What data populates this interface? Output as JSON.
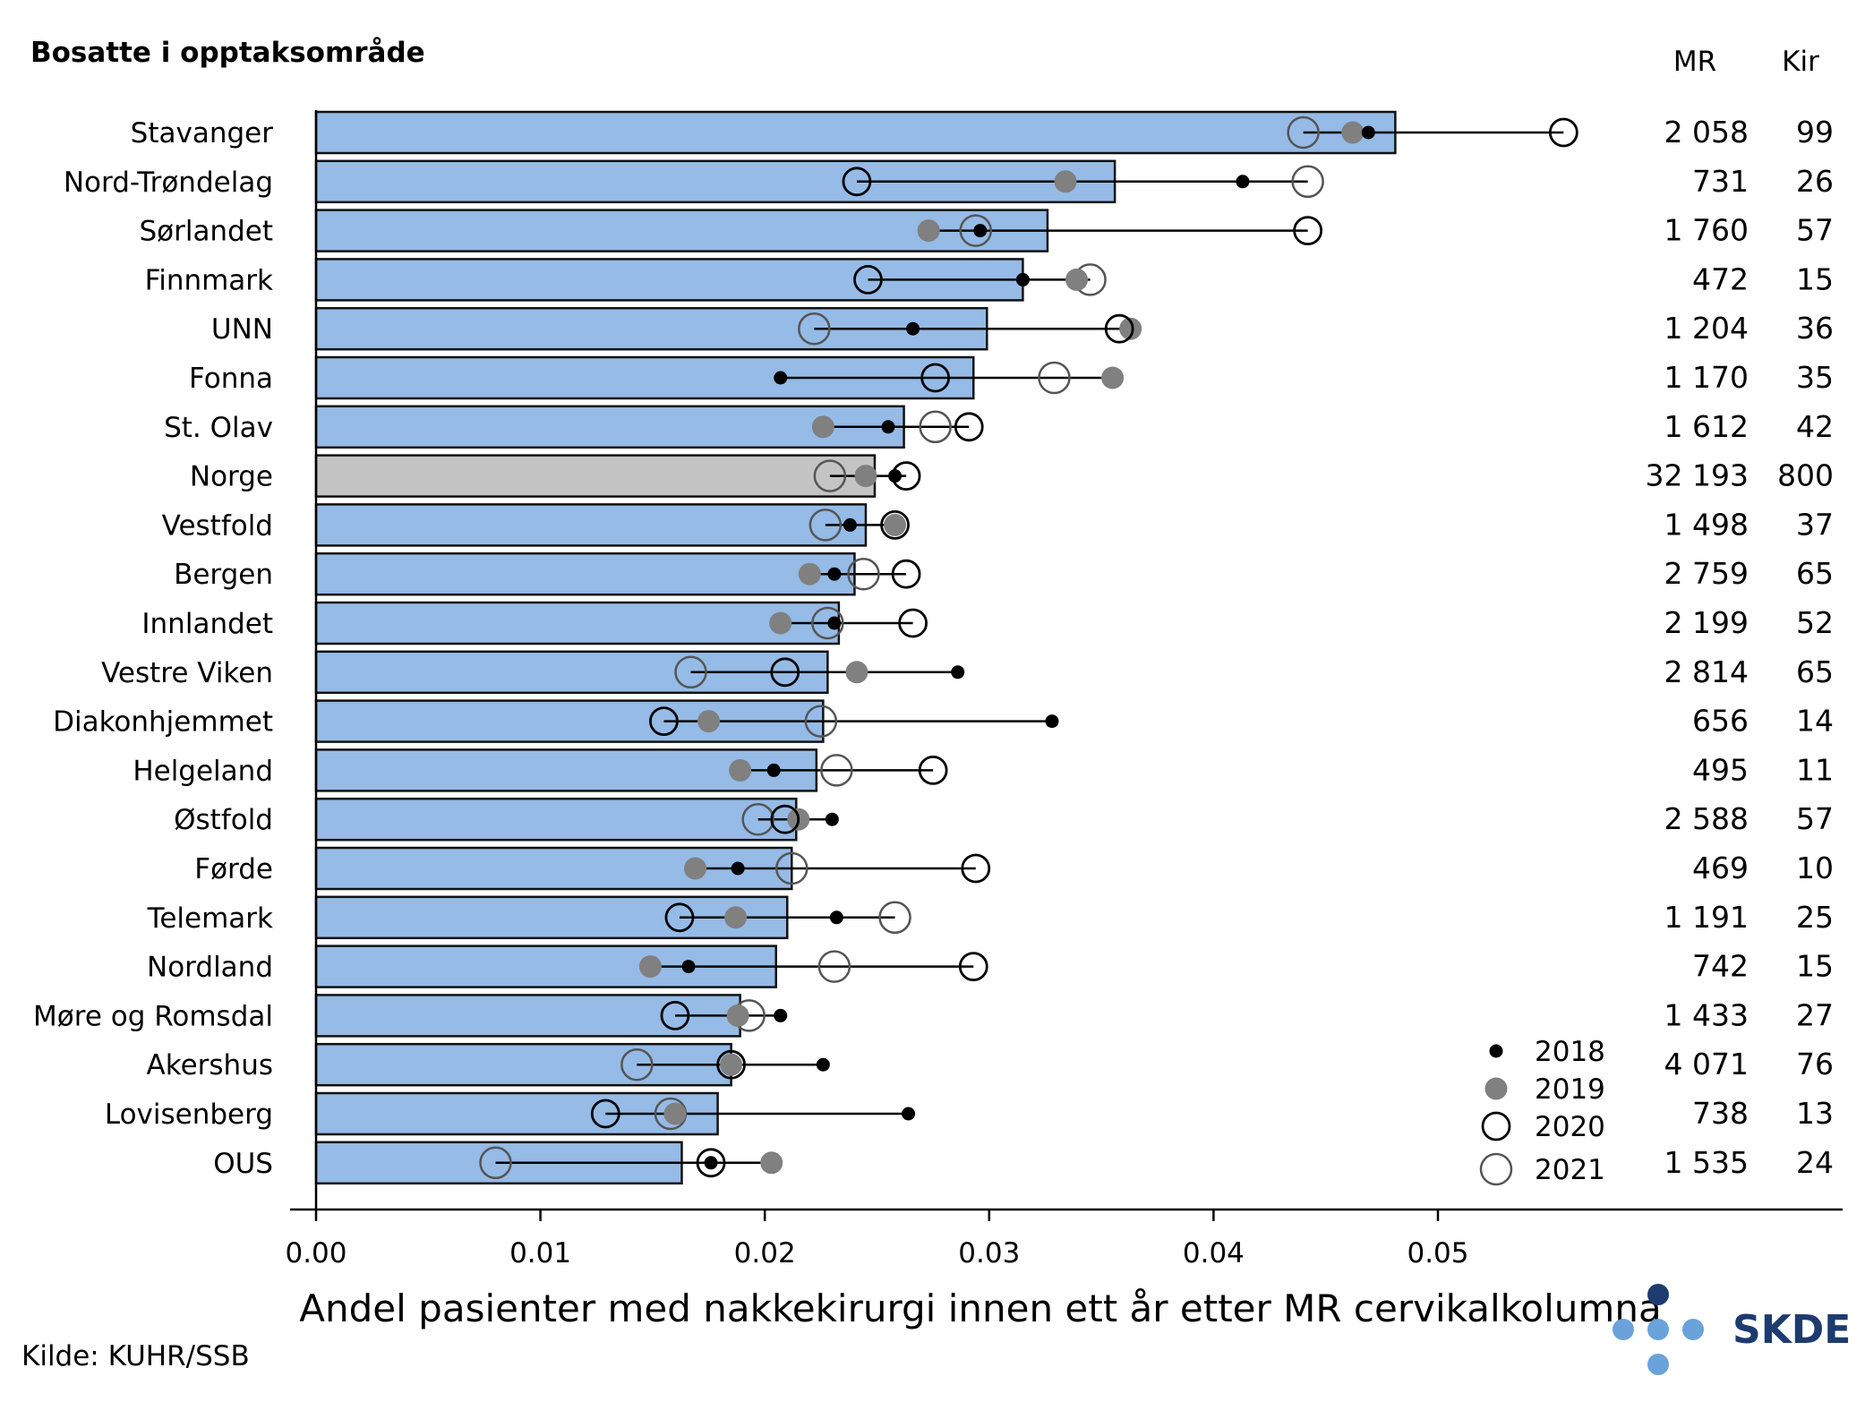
{
  "chart_data": {
    "type": "bar",
    "title": "Bosatte i opptaksområde",
    "xlabel": "Andel pasienter med nakkekirurgi innen ett år etter MR cervikalkolumna",
    "xlim": [
      0,
      0.059
    ],
    "xticks": [
      "0.00",
      "0.01",
      "0.02",
      "0.03",
      "0.04",
      "0.05"
    ],
    "source": "Kilde: KUHR/SSB",
    "logo_text": "SKDE",
    "columns": {
      "mr": "MR",
      "kir": "Kir"
    },
    "highlight_category": "Norge",
    "colors": {
      "bar": "#95bbe6",
      "bar_highlight": "#c4c4c4",
      "bar_edge": "#111111",
      "y2018": "#000000",
      "y2019": "#808080",
      "y2020": "#000000",
      "y2021": "#555555",
      "logo_dark": "#1d3b6f",
      "logo_light": "#6aa2dc"
    },
    "legend": {
      "placement": "lower-right",
      "entries": [
        "2018",
        "2019",
        "2020",
        "2021"
      ]
    },
    "rows": [
      {
        "category": "Stavanger",
        "value": 0.0481,
        "y2018": 0.0469,
        "y2019": 0.0462,
        "y2020": 0.0556,
        "y2021": 0.044,
        "mr": "2 058",
        "kir": "99"
      },
      {
        "category": "Nord-Trøndelag",
        "value": 0.0356,
        "y2018": 0.0413,
        "y2019": 0.0334,
        "y2020": 0.0241,
        "y2021": 0.0442,
        "mr": "731",
        "kir": "26"
      },
      {
        "category": "Sørlandet",
        "value": 0.0326,
        "y2018": 0.0296,
        "y2019": 0.0273,
        "y2020": 0.0442,
        "y2021": 0.0294,
        "mr": "1 760",
        "kir": "57"
      },
      {
        "category": "Finnmark",
        "value": 0.0315,
        "y2018": 0.0315,
        "y2019": 0.0339,
        "y2020": 0.0246,
        "y2021": 0.0345,
        "mr": "472",
        "kir": "15"
      },
      {
        "category": "UNN",
        "value": 0.0299,
        "y2018": 0.0266,
        "y2019": 0.0363,
        "y2020": 0.0358,
        "y2021": 0.0222,
        "mr": "1 204",
        "kir": "36"
      },
      {
        "category": "Fonna",
        "value": 0.0293,
        "y2018": 0.0207,
        "y2019": 0.0355,
        "y2020": 0.0276,
        "y2021": 0.0329,
        "mr": "1 170",
        "kir": "35"
      },
      {
        "category": "St. Olav",
        "value": 0.0262,
        "y2018": 0.0255,
        "y2019": 0.0226,
        "y2020": 0.0291,
        "y2021": 0.0276,
        "mr": "1 612",
        "kir": "42"
      },
      {
        "category": "Norge",
        "value": 0.0249,
        "y2018": 0.0258,
        "y2019": 0.0245,
        "y2020": 0.0263,
        "y2021": 0.0229,
        "mr": "32 193",
        "kir": "800"
      },
      {
        "category": "Vestfold",
        "value": 0.0245,
        "y2018": 0.0238,
        "y2019": 0.0258,
        "y2020": 0.0258,
        "y2021": 0.0227,
        "mr": "1 498",
        "kir": "37"
      },
      {
        "category": "Bergen",
        "value": 0.024,
        "y2018": 0.0231,
        "y2019": 0.022,
        "y2020": 0.0263,
        "y2021": 0.0244,
        "mr": "2 759",
        "kir": "65"
      },
      {
        "category": "Innlandet",
        "value": 0.0233,
        "y2018": 0.0231,
        "y2019": 0.0207,
        "y2020": 0.0266,
        "y2021": 0.0228,
        "mr": "2 199",
        "kir": "52"
      },
      {
        "category": "Vestre Viken",
        "value": 0.0228,
        "y2018": 0.0286,
        "y2019": 0.0241,
        "y2020": 0.0209,
        "y2021": 0.0167,
        "mr": "2 814",
        "kir": "65"
      },
      {
        "category": "Diakonhjemmet",
        "value": 0.0226,
        "y2018": 0.0328,
        "y2019": 0.0175,
        "y2020": 0.0155,
        "y2021": 0.0225,
        "mr": "656",
        "kir": "14"
      },
      {
        "category": "Helgeland",
        "value": 0.0223,
        "y2018": 0.0204,
        "y2019": 0.0189,
        "y2020": 0.0275,
        "y2021": 0.0232,
        "mr": "495",
        "kir": "11"
      },
      {
        "category": "Østfold",
        "value": 0.0214,
        "y2018": 0.023,
        "y2019": 0.0215,
        "y2020": 0.0209,
        "y2021": 0.0197,
        "mr": "2 588",
        "kir": "57"
      },
      {
        "category": "Førde",
        "value": 0.0212,
        "y2018": 0.0188,
        "y2019": 0.0169,
        "y2020": 0.0294,
        "y2021": 0.0212,
        "mr": "469",
        "kir": "10"
      },
      {
        "category": "Telemark",
        "value": 0.021,
        "y2018": 0.0232,
        "y2019": 0.0187,
        "y2020": 0.0162,
        "y2021": 0.0258,
        "mr": "1 191",
        "kir": "25"
      },
      {
        "category": "Nordland",
        "value": 0.0205,
        "y2018": 0.0166,
        "y2019": 0.0149,
        "y2020": 0.0293,
        "y2021": 0.0231,
        "mr": "742",
        "kir": "15"
      },
      {
        "category": "Møre og Romsdal",
        "value": 0.0189,
        "y2018": 0.0207,
        "y2019": 0.0188,
        "y2020": 0.016,
        "y2021": 0.0193,
        "mr": "1 433",
        "kir": "27"
      },
      {
        "category": "Akershus",
        "value": 0.0185,
        "y2018": 0.0226,
        "y2019": 0.0185,
        "y2020": 0.0185,
        "y2021": 0.0143,
        "mr": "4 071",
        "kir": "76"
      },
      {
        "category": "Lovisenberg",
        "value": 0.0179,
        "y2018": 0.0264,
        "y2019": 0.016,
        "y2020": 0.0129,
        "y2021": 0.0158,
        "mr": "738",
        "kir": "13"
      },
      {
        "category": "OUS",
        "value": 0.0163,
        "y2018": 0.0176,
        "y2019": 0.0203,
        "y2020": 0.0176,
        "y2021": 0.008,
        "mr": "1 535",
        "kir": "24"
      }
    ]
  }
}
